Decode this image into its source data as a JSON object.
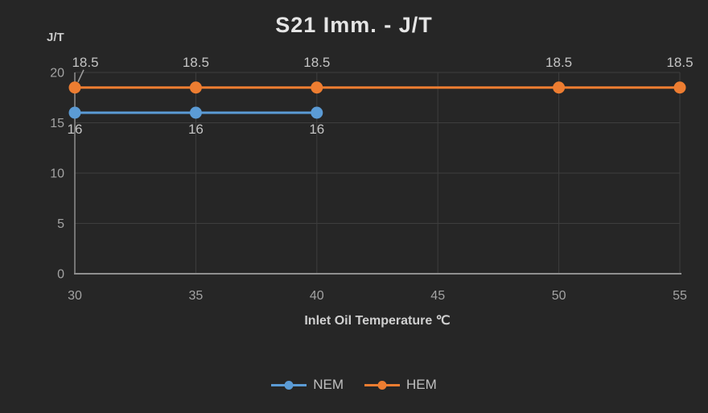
{
  "title": "S21 Imm. - J/T",
  "y_axis_unit": "J/T",
  "x_axis_title": "Inlet Oil Temperature ℃",
  "colors": {
    "background": "#262626",
    "title_text": "#E5E5E5",
    "axis_unit_text": "#C8C8C8",
    "axis_title_text": "#CFCFCF",
    "tick_label": "#A3A3A3",
    "data_label": "#C4C4C4",
    "gridline": "#3E3E3E",
    "axis_line": "#8F8F8F",
    "leader_line": "#9E9E9E",
    "legend_text": "#C0C0C0",
    "nem": "#5B9BD5",
    "hem": "#ED7D31"
  },
  "chart_data": {
    "type": "line",
    "title": "S21 Imm. - J/T",
    "xlabel": "Inlet Oil Temperature ℃",
    "ylabel": "J/T",
    "xlim": [
      30,
      55
    ],
    "ylim": [
      0,
      20
    ],
    "x_ticks": [
      30,
      35,
      40,
      45,
      50,
      55
    ],
    "y_ticks": [
      0,
      5,
      10,
      15,
      20
    ],
    "grid": true,
    "legend_position": "bottom",
    "series": [
      {
        "name": "NEM",
        "color": "#5B9BD5",
        "x": [
          30,
          35,
          40
        ],
        "y": [
          16,
          16,
          16
        ],
        "data_labels": [
          "16",
          "16",
          "16"
        ],
        "label_position": "below"
      },
      {
        "name": "HEM",
        "color": "#ED7D31",
        "x": [
          30,
          35,
          40,
          50,
          55
        ],
        "y": [
          18.5,
          18.5,
          18.5,
          18.5,
          18.5
        ],
        "data_labels": [
          "18.5",
          "18.5",
          "18.5",
          "18.5",
          "18.5"
        ],
        "label_position": "above",
        "first_label_has_leader": true
      }
    ]
  },
  "legend": {
    "items": [
      {
        "label": "NEM",
        "color": "#5B9BD5"
      },
      {
        "label": "HEM",
        "color": "#ED7D31"
      }
    ]
  }
}
